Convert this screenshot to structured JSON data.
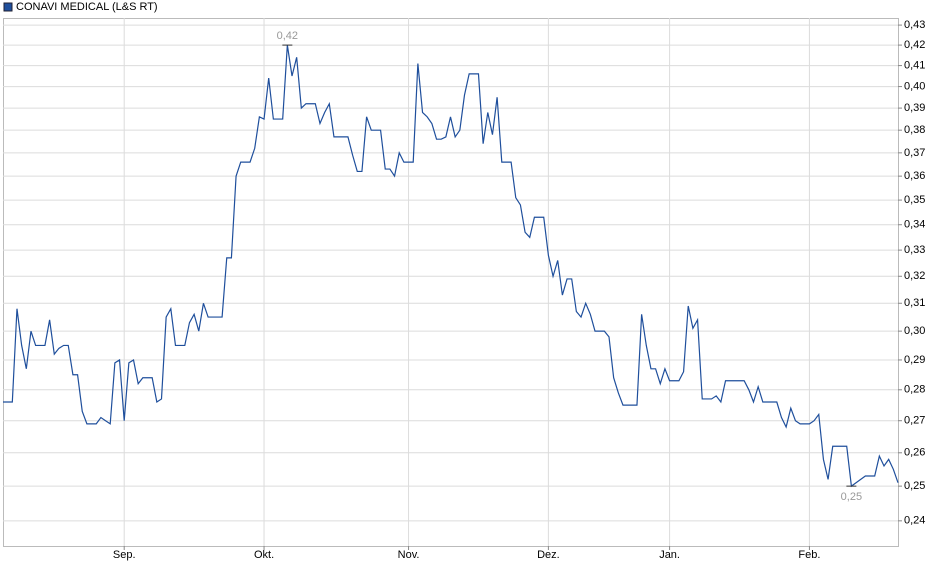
{
  "chart_data": {
    "type": "line",
    "series": [
      {
        "name": "CONAVI MEDICAL (L&S RT)",
        "color": "#1f4f9c",
        "values": [
          0.276,
          0.276,
          0.276,
          0.308,
          0.295,
          0.287,
          0.3,
          0.295,
          0.295,
          0.295,
          0.304,
          0.292,
          0.294,
          0.295,
          0.295,
          0.285,
          0.285,
          0.273,
          0.269,
          0.269,
          0.269,
          0.271,
          0.27,
          0.269,
          0.289,
          0.29,
          0.27,
          0.289,
          0.29,
          0.282,
          0.284,
          0.284,
          0.284,
          0.276,
          0.277,
          0.305,
          0.308,
          0.295,
          0.295,
          0.295,
          0.303,
          0.306,
          0.3,
          0.31,
          0.305,
          0.305,
          0.305,
          0.305,
          0.327,
          0.327,
          0.36,
          0.366,
          0.366,
          0.366,
          0.372,
          0.386,
          0.385,
          0.404,
          0.385,
          0.385,
          0.385,
          0.42,
          0.405,
          0.414,
          0.39,
          0.392,
          0.392,
          0.392,
          0.383,
          0.388,
          0.392,
          0.377,
          0.377,
          0.377,
          0.377,
          0.369,
          0.362,
          0.362,
          0.386,
          0.38,
          0.38,
          0.38,
          0.363,
          0.363,
          0.36,
          0.37,
          0.366,
          0.366,
          0.366,
          0.411,
          0.388,
          0.386,
          0.383,
          0.376,
          0.376,
          0.377,
          0.386,
          0.377,
          0.38,
          0.396,
          0.406,
          0.406,
          0.406,
          0.374,
          0.388,
          0.378,
          0.395,
          0.366,
          0.366,
          0.366,
          0.351,
          0.348,
          0.337,
          0.335,
          0.343,
          0.343,
          0.343,
          0.328,
          0.32,
          0.326,
          0.313,
          0.319,
          0.319,
          0.307,
          0.305,
          0.31,
          0.306,
          0.3,
          0.3,
          0.3,
          0.298,
          0.284,
          0.279,
          0.275,
          0.275,
          0.275,
          0.275,
          0.306,
          0.295,
          0.287,
          0.287,
          0.282,
          0.287,
          0.283,
          0.283,
          0.283,
          0.286,
          0.309,
          0.301,
          0.304,
          0.277,
          0.277,
          0.277,
          0.278,
          0.276,
          0.283,
          0.283,
          0.283,
          0.283,
          0.283,
          0.28,
          0.276,
          0.281,
          0.276,
          0.276,
          0.276,
          0.276,
          0.271,
          0.268,
          0.274,
          0.27,
          0.269,
          0.269,
          0.269,
          0.27,
          0.272,
          0.258,
          0.252,
          0.262,
          0.262,
          0.262,
          0.262,
          0.25,
          0.251,
          0.252,
          0.253,
          0.253,
          0.253,
          0.259,
          0.256,
          0.258,
          0.255,
          0.251
        ]
      }
    ],
    "xlim": [
      0,
      192
    ],
    "xticks": [
      {
        "value": 26,
        "label": "Sep."
      },
      {
        "value": 56,
        "label": "Okt."
      },
      {
        "value": 87,
        "label": "Nov."
      },
      {
        "value": 117,
        "label": "Dez."
      },
      {
        "value": 143,
        "label": "Jan."
      },
      {
        "value": 173,
        "label": "Feb."
      }
    ],
    "ylim": [
      0.233,
      0.4336
    ],
    "log_y": true,
    "yticks": [
      {
        "value": 0.24,
        "label": "0,24"
      },
      {
        "value": 0.25,
        "label": "0,25"
      },
      {
        "value": 0.26,
        "label": "0,26"
      },
      {
        "value": 0.27,
        "label": "0,27"
      },
      {
        "value": 0.28,
        "label": "0,28"
      },
      {
        "value": 0.29,
        "label": "0,29"
      },
      {
        "value": 0.3,
        "label": "0,30"
      },
      {
        "value": 0.31,
        "label": "0,31"
      },
      {
        "value": 0.32,
        "label": "0,32"
      },
      {
        "value": 0.33,
        "label": "0,33"
      },
      {
        "value": 0.34,
        "label": "0,34"
      },
      {
        "value": 0.35,
        "label": "0,35"
      },
      {
        "value": 0.36,
        "label": "0,36"
      },
      {
        "value": 0.37,
        "label": "0,37"
      },
      {
        "value": 0.38,
        "label": "0,38"
      },
      {
        "value": 0.39,
        "label": "0,39"
      },
      {
        "value": 0.4,
        "label": "0,40"
      },
      {
        "value": 0.41,
        "label": "0,41"
      },
      {
        "value": 0.42,
        "label": "0,42"
      },
      {
        "value": 0.43,
        "label": "0,43"
      }
    ],
    "grid": true,
    "legend": "top-left",
    "annotations": [
      {
        "text": "0,42",
        "value": 0.42,
        "position": "above"
      },
      {
        "text": "0,25",
        "value": 0.25,
        "position": "below"
      }
    ]
  }
}
